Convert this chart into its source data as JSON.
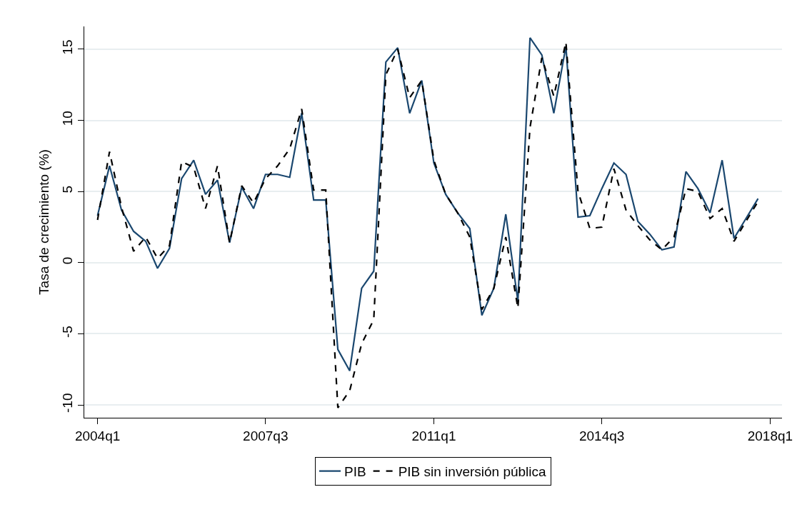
{
  "chart_data": {
    "type": "line",
    "ylabel": "Tasa de crecimiento (%)",
    "x": [
      "2004-01",
      "2004-04",
      "2004-07",
      "2004-10",
      "2005-01",
      "2005-04",
      "2005-07",
      "2005-10",
      "2006-01",
      "2006-04",
      "2006-07",
      "2006-10",
      "2007-01",
      "2007-04",
      "2007-07",
      "2007-10",
      "2008-01",
      "2008-04",
      "2008-07",
      "2008-10",
      "2009-01",
      "2009-04",
      "2009-07",
      "2009-10",
      "2010-01",
      "2010-04",
      "2010-07",
      "2010-10",
      "2011-01",
      "2011-04",
      "2011-07",
      "2011-10",
      "2012-01",
      "2012-04",
      "2012-07",
      "2012-10",
      "2013-01",
      "2013-04",
      "2013-07",
      "2013-10",
      "2014-01",
      "2014-04",
      "2014-07",
      "2014-10",
      "2015-01",
      "2015-04",
      "2015-07",
      "2015-10",
      "2016-01",
      "2016-04",
      "2016-07",
      "2016-10",
      "2017-01",
      "2017-04",
      "2017-07",
      "2017-10"
    ],
    "xlim": [
      "2003-09-22",
      "2018-04-01"
    ],
    "xticks": [
      {
        "value": "2004-01",
        "label": "2004q1"
      },
      {
        "value": "2007-07",
        "label": "2007q3"
      },
      {
        "value": "2011-01",
        "label": "2011q1"
      },
      {
        "value": "2014-07",
        "label": "2014q3"
      },
      {
        "value": "2018-01",
        "label": "2018q1"
      }
    ],
    "ylim": [
      -10.9,
      16.6
    ],
    "yticks": [
      -10,
      -5,
      0,
      5,
      10,
      15
    ],
    "grid": "y",
    "legend": "bottom",
    "marker": "none",
    "series": [
      {
        "name": "PIB",
        "color": "#1a476f",
        "line_style": "solid",
        "values": [
          3.3,
          6.8,
          3.7,
          2.2,
          1.5,
          -0.4,
          1.0,
          5.9,
          7.2,
          4.8,
          5.8,
          1.4,
          5.3,
          3.8,
          6.2,
          6.2,
          6.0,
          10.5,
          4.4,
          4.4,
          -6.1,
          -7.6,
          -1.8,
          -0.6,
          14.1,
          15.1,
          10.5,
          12.8,
          7.0,
          4.8,
          3.5,
          2.4,
          -3.7,
          -1.8,
          3.4,
          -2.7,
          15.8,
          14.6,
          10.5,
          15.2,
          3.2,
          3.3,
          5.2,
          7.0,
          6.2,
          2.9,
          2.0,
          0.9,
          1.1,
          6.4,
          5.2,
          3.5,
          7.2,
          1.7,
          3.1,
          4.5
        ]
      },
      {
        "name": "PIB sin inversión pública",
        "color": "#000000",
        "line_style": "dashed",
        "values": [
          3.0,
          7.8,
          3.9,
          0.8,
          1.8,
          0.3,
          1.2,
          7.1,
          6.7,
          3.8,
          6.8,
          1.4,
          5.4,
          4.2,
          5.9,
          6.8,
          8.0,
          10.8,
          5.1,
          5.1,
          -10.2,
          -9.0,
          -5.7,
          -4.0,
          13.2,
          15.0,
          11.6,
          12.8,
          7.2,
          4.8,
          3.5,
          1.8,
          -3.3,
          -1.8,
          1.8,
          -3.2,
          9.5,
          14.4,
          11.7,
          15.5,
          5.0,
          2.4,
          2.5,
          6.6,
          3.7,
          2.6,
          1.6,
          0.9,
          1.8,
          5.2,
          5.0,
          3.1,
          3.8,
          1.5,
          2.9,
          4.3
        ]
      }
    ]
  }
}
